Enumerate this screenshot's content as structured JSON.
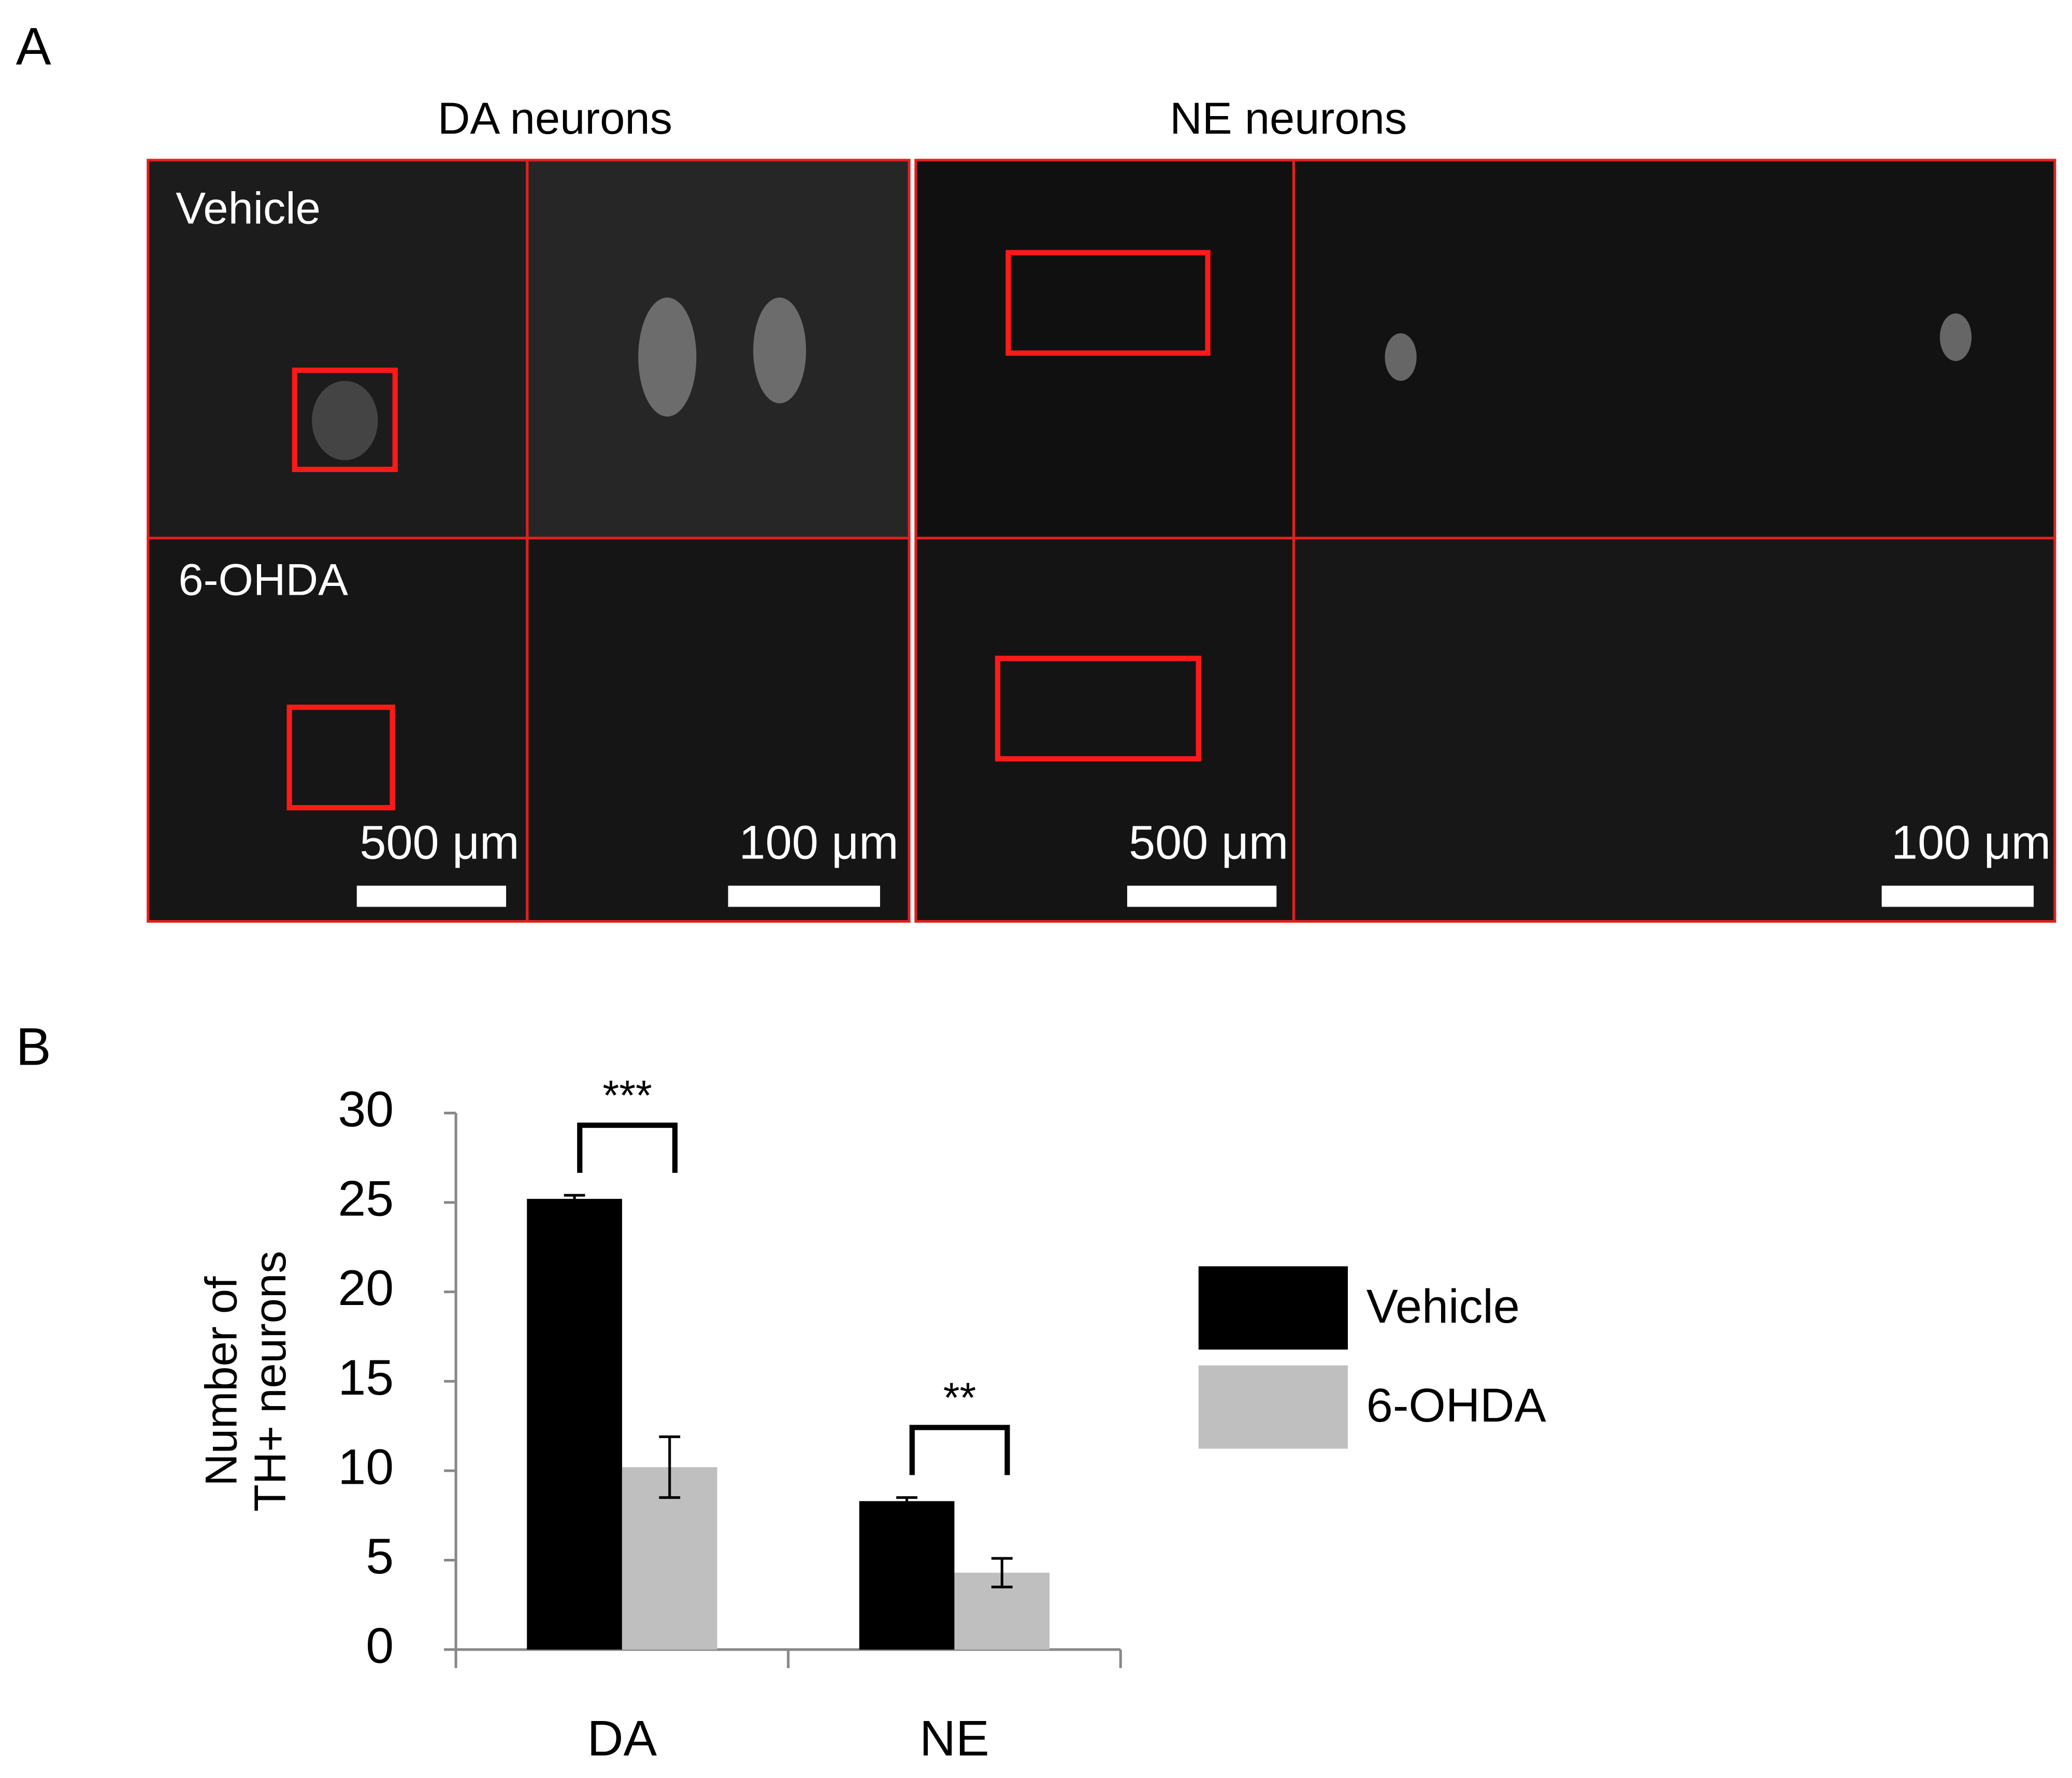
{
  "panel_a": {
    "label": "A",
    "columns": [
      "DA neurons",
      "NE neurons"
    ],
    "rows": [
      "Vehicle",
      "6-OHDA"
    ],
    "scale_bars": [
      "500 μm",
      "100 μm",
      "500 μm",
      "100 μm"
    ]
  },
  "chart_data": {
    "type": "bar",
    "panel_label": "B",
    "ylabel": [
      "Number of",
      "TH+ neurons"
    ],
    "categories": [
      "DA",
      "NE"
    ],
    "series": [
      {
        "name": "Vehicle",
        "color": "#000000",
        "values": [
          25.2,
          8.3
        ],
        "errors": [
          0.2,
          0.2
        ]
      },
      {
        "name": "6-OHDA",
        "color": "#bfbfbf",
        "values": [
          10.2,
          4.3
        ],
        "errors": [
          1.7,
          0.8
        ]
      }
    ],
    "annotations": [
      "***",
      "**"
    ],
    "ylim": [
      0,
      30
    ],
    "yticks": [
      0,
      5,
      10,
      15,
      20,
      25,
      30
    ],
    "legend": "right"
  }
}
